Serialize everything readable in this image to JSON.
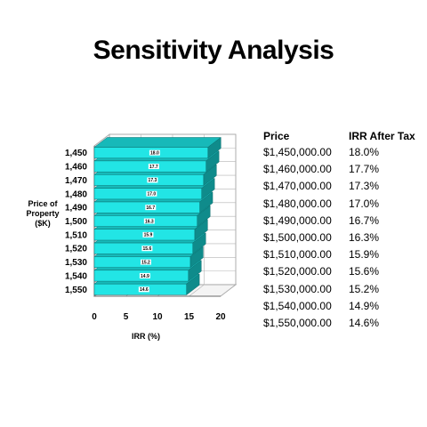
{
  "title": "Sensitivity Analysis",
  "chart_data": {
    "type": "bar",
    "orientation": "horizontal",
    "categories": [
      "1,450",
      "1,460",
      "1,470",
      "1,480",
      "1,490",
      "1,500",
      "1,510",
      "1,520",
      "1,530",
      "1,540",
      "1,550"
    ],
    "values": [
      18.0,
      17.7,
      17.3,
      17.0,
      16.7,
      16.3,
      15.9,
      15.6,
      15.2,
      14.9,
      14.6
    ],
    "data_labels": [
      "18.0",
      "17.7",
      "17.3",
      "17.0",
      "16.7",
      "16.3",
      "15.9",
      "15.6",
      "15.2",
      "14.9",
      "14.6"
    ],
    "xlabel": "IRR (%)",
    "ylabel": "Price of Property ($K)",
    "xlim": [
      0,
      20
    ],
    "xticks": [
      "0",
      "5",
      "10",
      "15",
      "20"
    ],
    "grid": true,
    "style": "3d",
    "bar_color": "#22e5e5"
  },
  "table": {
    "headers": [
      "Price",
      "IRR After Tax"
    ],
    "rows": [
      [
        "$1,450,000.00",
        "18.0%"
      ],
      [
        "$1,460,000.00",
        "17.7%"
      ],
      [
        "$1,470,000.00",
        "17.3%"
      ],
      [
        "$1,480,000.00",
        "17.0%"
      ],
      [
        "$1,490,000.00",
        "16.7%"
      ],
      [
        "$1,500,000.00",
        "16.3%"
      ],
      [
        "$1,510,000.00",
        "15.9%"
      ],
      [
        "$1,520,000.00",
        "15.6%"
      ],
      [
        "$1,530,000.00",
        "15.2%"
      ],
      [
        "$1,540,000.00",
        "14.9%"
      ],
      [
        "$1,550,000.00",
        "14.6%"
      ]
    ]
  }
}
